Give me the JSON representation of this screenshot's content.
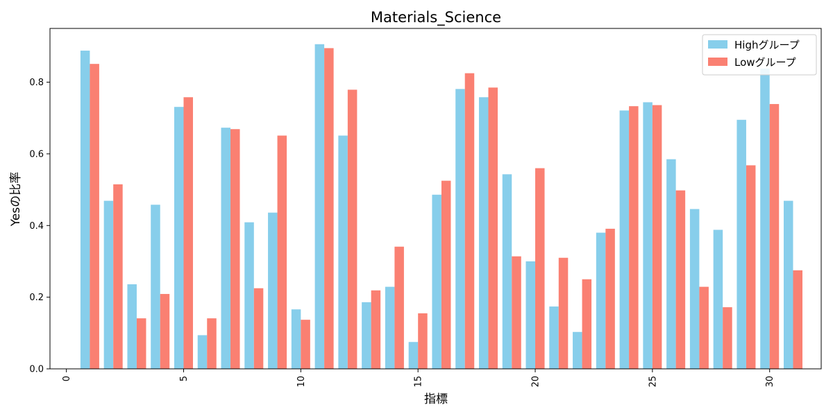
{
  "chart_data": {
    "type": "bar",
    "title": "Materials_Science",
    "xlabel": "指標",
    "ylabel": "Yesの比率",
    "x": [
      1,
      2,
      3,
      4,
      5,
      6,
      7,
      8,
      9,
      10,
      11,
      12,
      13,
      14,
      15,
      16,
      17,
      18,
      19,
      20,
      21,
      22,
      23,
      24,
      25,
      26,
      27,
      28,
      29,
      30,
      31
    ],
    "xticks": [
      0,
      5,
      10,
      15,
      20,
      25,
      30
    ],
    "xlim": [
      -0.7,
      32.2
    ],
    "yticks": [
      0.0,
      0.2,
      0.4,
      0.6,
      0.8
    ],
    "ylim": [
      0,
      0.95
    ],
    "grid": false,
    "legend_position": "top-right",
    "series": [
      {
        "name": "Highグループ",
        "color": "#87CEEB",
        "values": [
          0.888,
          0.469,
          0.236,
          0.458,
          0.731,
          0.094,
          0.673,
          0.409,
          0.436,
          0.166,
          0.906,
          0.651,
          0.186,
          0.229,
          0.075,
          0.486,
          0.781,
          0.758,
          0.543,
          0.3,
          0.174,
          0.103,
          0.38,
          0.721,
          0.744,
          0.585,
          0.446,
          0.388,
          0.695,
          0.838,
          0.469
        ]
      },
      {
        "name": "Lowグループ",
        "color": "#FA8072",
        "values": [
          0.851,
          0.515,
          0.141,
          0.209,
          0.758,
          0.141,
          0.669,
          0.225,
          0.651,
          0.137,
          0.895,
          0.779,
          0.219,
          0.341,
          0.155,
          0.525,
          0.825,
          0.785,
          0.314,
          0.56,
          0.31,
          0.25,
          0.391,
          0.733,
          0.736,
          0.498,
          0.229,
          0.172,
          0.568,
          0.739,
          0.275
        ]
      }
    ]
  }
}
